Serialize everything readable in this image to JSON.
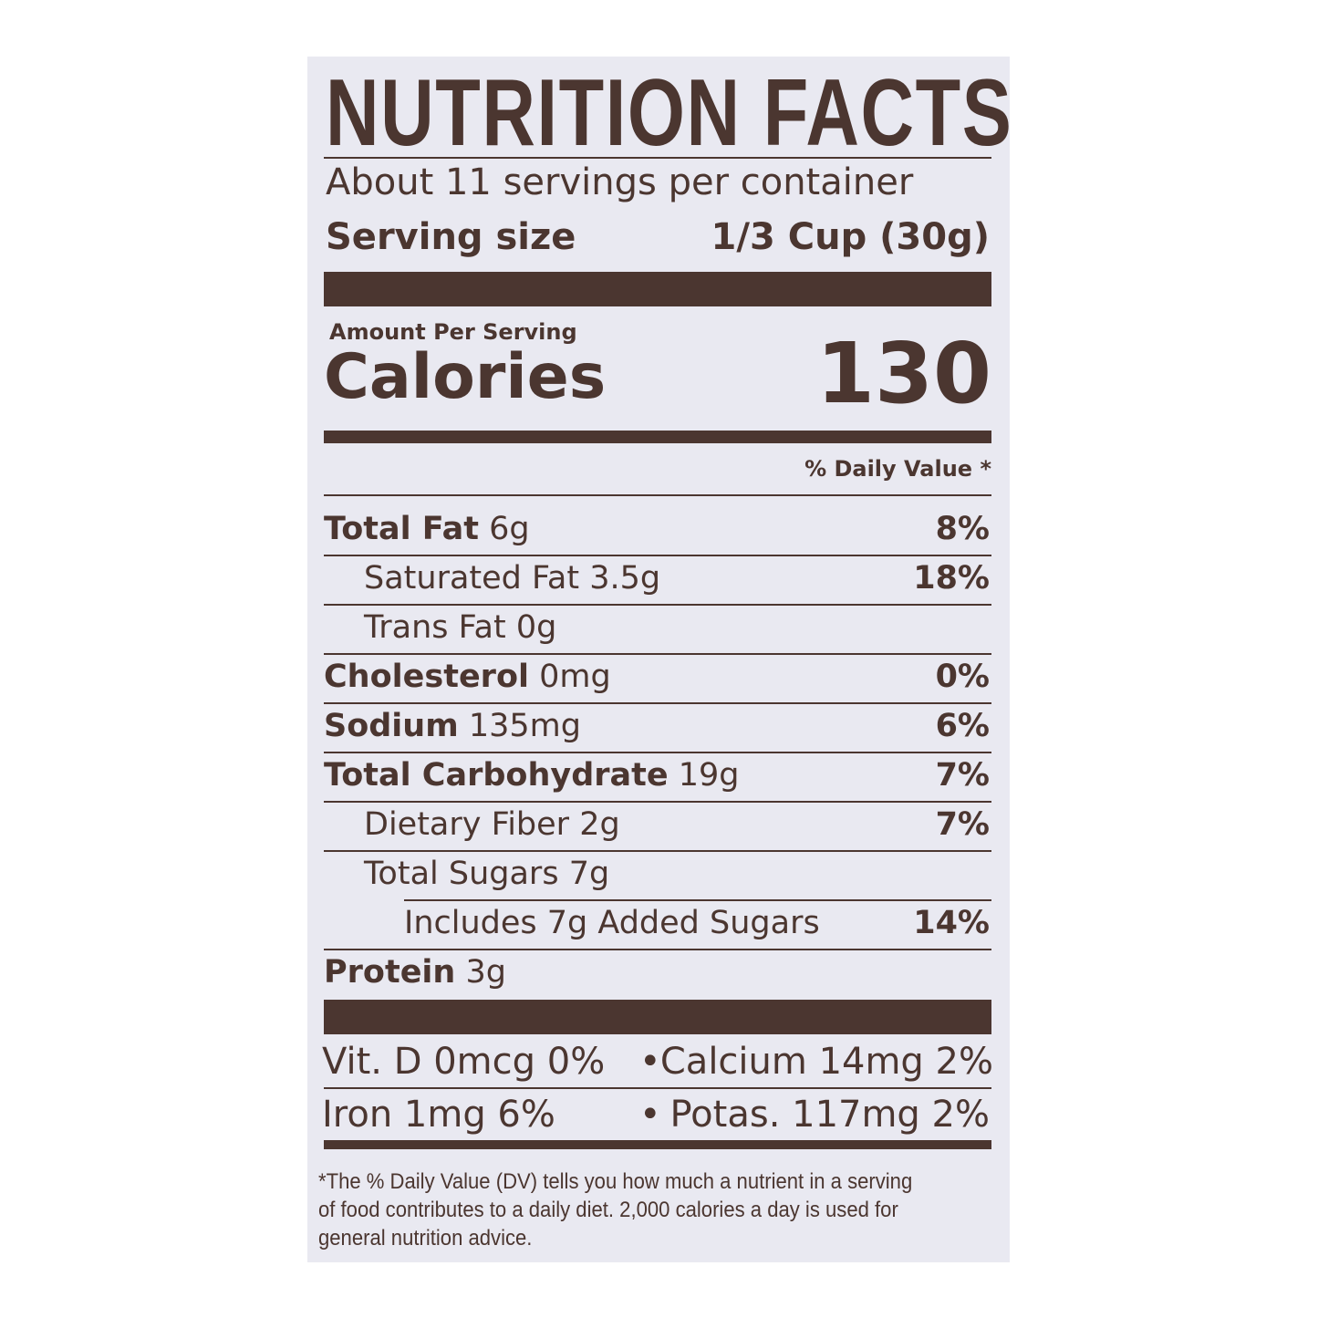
{
  "title": "NUTRITION FACTS",
  "servings_per_container": "About 11 servings per container",
  "serving_size_label": "Serving size",
  "serving_size_value": "1/3 Cup (30g)",
  "amount_per_serving": "Amount Per Serving",
  "calories_label": "Calories",
  "calories_value": "130",
  "daily_value_header": "% Daily Value *",
  "nutrients": [
    {
      "name": "Total Fat",
      "amount": "6g",
      "dv": "8%"
    },
    {
      "name": "Saturated Fat",
      "amount": "3.5g",
      "dv": "18%"
    },
    {
      "name": "Trans Fat",
      "amount": "0g",
      "dv": ""
    },
    {
      "name": "Cholesterol",
      "amount": "0mg",
      "dv": "0%"
    },
    {
      "name": "Sodium",
      "amount": "135mg",
      "dv": "6%"
    },
    {
      "name": "Total Carbohydrate",
      "amount": "19g",
      "dv": "7%"
    },
    {
      "name": "Dietary Fiber",
      "amount": "2g",
      "dv": "7%"
    },
    {
      "name": "Total Sugars",
      "amount": "7g",
      "dv": ""
    },
    {
      "name": "Includes 7g Added Sugars",
      "amount": "",
      "dv": "14%"
    },
    {
      "name": "Protein",
      "amount": "3g",
      "dv": ""
    }
  ],
  "vitamins": {
    "row1_left": "Vit. D 0mcg 0%",
    "row1_right": "Calcium 14mg 2%",
    "row2_left": "Iron 1mg 6%",
    "row2_right": "Potas. 117mg 2%",
    "separator": "•"
  },
  "footnote": "*The % Daily Value (DV) tells you how much a nutrient in a serving of food contributes to a daily diet. 2,000 calories a day is used for general nutrition advice.",
  "colors": {
    "ink": "#4b3630",
    "label_background": "#e9e9f1"
  }
}
